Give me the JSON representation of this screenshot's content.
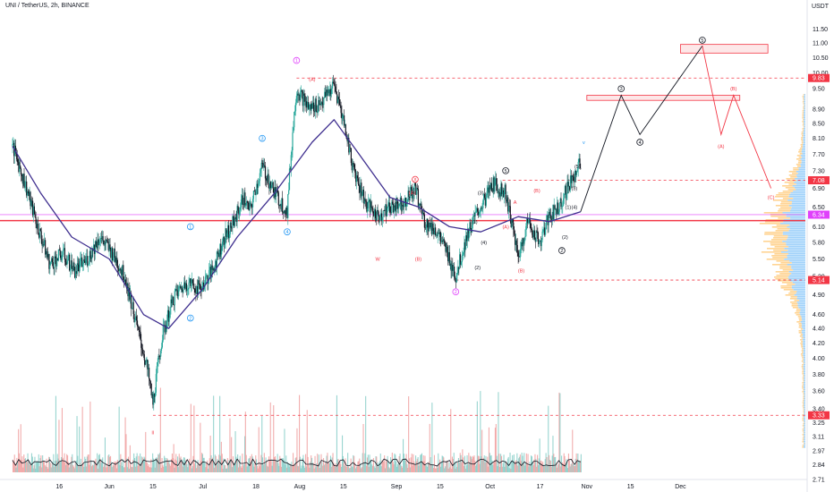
{
  "header": {
    "title": "UNI / TetherUS, 2h, BINANCE",
    "currency": "USDT"
  },
  "chart_data": {
    "type": "line",
    "subtype": "candlestick-elliott-wave",
    "title": "UNI / TetherUS, 2h, BINANCE",
    "ylim": [
      2.71,
      12.2
    ],
    "log_scale": true,
    "grid": false,
    "price_axis_ticks": [
      "11.50",
      "11.00",
      "10.50",
      "10.00",
      "9.50",
      "8.90",
      "8.50",
      "8.10",
      "7.70",
      "7.30",
      "6.90",
      "6.50",
      "6.10",
      "5.80",
      "5.50",
      "5.20",
      "4.90",
      "4.60",
      "4.40",
      "4.20",
      "4.00",
      "3.80",
      "3.60",
      "3.40",
      "3.25",
      "3.11",
      "2.97",
      "2.84",
      "2.71"
    ],
    "time_axis_ticks": [
      {
        "label": "16",
        "date": "2023-05-16"
      },
      {
        "label": "Jun",
        "date": "2023-06-01"
      },
      {
        "label": "15",
        "date": "2023-06-15"
      },
      {
        "label": "Jul",
        "date": "2023-07-01"
      },
      {
        "label": "18",
        "date": "2023-07-18"
      },
      {
        "label": "Aug",
        "date": "2023-08-01"
      },
      {
        "label": "15",
        "date": "2023-08-15"
      },
      {
        "label": "Sep",
        "date": "2023-09-01"
      },
      {
        "label": "15",
        "date": "2023-09-15"
      },
      {
        "label": "Oct",
        "date": "2023-10-01"
      },
      {
        "label": "17",
        "date": "2023-10-17"
      },
      {
        "label": "Nov",
        "date": "2023-11-01"
      },
      {
        "label": "15",
        "date": "2023-11-15"
      },
      {
        "label": "Dec",
        "date": "2023-12-01"
      }
    ],
    "price_labels": [
      {
        "text": "9.83",
        "color": "#f23645"
      },
      {
        "text": "7.08",
        "color": "#f23645"
      },
      {
        "text": "6.34",
        "color": "#e040fb"
      },
      {
        "text": "5.14",
        "color": "#f23645"
      },
      {
        "text": "3.33",
        "color": "#f23645"
      }
    ],
    "levels": [
      {
        "price": 9.83,
        "style": "dashed",
        "color": "#f23645"
      },
      {
        "price": 7.08,
        "style": "dashed",
        "color": "#f23645"
      },
      {
        "price": 6.34,
        "style": "solid",
        "color": "#e040fb"
      },
      {
        "price": 6.22,
        "style": "solid",
        "color": "#f23645"
      },
      {
        "price": 5.14,
        "style": "dashed",
        "color": "#f23645"
      },
      {
        "price": 3.33,
        "style": "dashed",
        "color": "#f23645"
      }
    ],
    "price_path": [
      {
        "date": "2023-05-01",
        "price": 7.9
      },
      {
        "date": "2023-05-05",
        "price": 7.0
      },
      {
        "date": "2023-05-09",
        "price": 6.1
      },
      {
        "date": "2023-05-13",
        "price": 5.4
      },
      {
        "date": "2023-05-17",
        "price": 5.6
      },
      {
        "date": "2023-05-21",
        "price": 5.3
      },
      {
        "date": "2023-05-25",
        "price": 5.5
      },
      {
        "date": "2023-05-29",
        "price": 5.9
      },
      {
        "date": "2023-06-02",
        "price": 5.6
      },
      {
        "date": "2023-06-06",
        "price": 5.2
      },
      {
        "date": "2023-06-10",
        "price": 4.4
      },
      {
        "date": "2023-06-13",
        "price": 3.9
      },
      {
        "date": "2023-06-15",
        "price": 3.45
      },
      {
        "date": "2023-06-18",
        "price": 4.3
      },
      {
        "date": "2023-06-22",
        "price": 4.9
      },
      {
        "date": "2023-06-26",
        "price": 5.1
      },
      {
        "date": "2023-06-30",
        "price": 5.0
      },
      {
        "date": "2023-07-04",
        "price": 5.3
      },
      {
        "date": "2023-07-08",
        "price": 5.9
      },
      {
        "date": "2023-07-11",
        "price": 6.2
      },
      {
        "date": "2023-07-14",
        "price": 6.7
      },
      {
        "date": "2023-07-16",
        "price": 6.4
      },
      {
        "date": "2023-07-20",
        "price": 7.4
      },
      {
        "date": "2023-07-24",
        "price": 6.8
      },
      {
        "date": "2023-07-28",
        "price": 6.4
      },
      {
        "date": "2023-07-31",
        "price": 9.5
      },
      {
        "date": "2023-08-04",
        "price": 8.9
      },
      {
        "date": "2023-08-08",
        "price": 9.1
      },
      {
        "date": "2023-08-12",
        "price": 9.6
      },
      {
        "date": "2023-08-15",
        "price": 8.6
      },
      {
        "date": "2023-08-18",
        "price": 7.4
      },
      {
        "date": "2023-08-22",
        "price": 6.6
      },
      {
        "date": "2023-08-26",
        "price": 6.3
      },
      {
        "date": "2023-08-30",
        "price": 6.5
      },
      {
        "date": "2023-09-03",
        "price": 6.6
      },
      {
        "date": "2023-09-07",
        "price": 6.9
      },
      {
        "date": "2023-09-10",
        "price": 6.2
      },
      {
        "date": "2023-09-14",
        "price": 6.0
      },
      {
        "date": "2023-09-18",
        "price": 5.5
      },
      {
        "date": "2023-09-20",
        "price": 5.2
      },
      {
        "date": "2023-09-24",
        "price": 6.0
      },
      {
        "date": "2023-09-28",
        "price": 6.5
      },
      {
        "date": "2023-10-02",
        "price": 7.0
      },
      {
        "date": "2023-10-06",
        "price": 6.8
      },
      {
        "date": "2023-10-10",
        "price": 5.5
      },
      {
        "date": "2023-10-13",
        "price": 6.2
      },
      {
        "date": "2023-10-17",
        "price": 5.8
      },
      {
        "date": "2023-10-20",
        "price": 6.3
      },
      {
        "date": "2023-10-23",
        "price": 6.5
      },
      {
        "date": "2023-10-27",
        "price": 7.1
      },
      {
        "date": "2023-10-30",
        "price": 7.5
      }
    ],
    "moving_average": [
      {
        "date": "2023-05-01",
        "price": 7.9
      },
      {
        "date": "2023-05-10",
        "price": 6.8
      },
      {
        "date": "2023-05-20",
        "price": 5.9
      },
      {
        "date": "2023-06-01",
        "price": 5.5
      },
      {
        "date": "2023-06-12",
        "price": 4.6
      },
      {
        "date": "2023-06-20",
        "price": 4.4
      },
      {
        "date": "2023-07-01",
        "price": 5.0
      },
      {
        "date": "2023-07-12",
        "price": 5.9
      },
      {
        "date": "2023-07-24",
        "price": 6.8
      },
      {
        "date": "2023-08-05",
        "price": 8.0
      },
      {
        "date": "2023-08-12",
        "price": 8.6
      },
      {
        "date": "2023-08-20",
        "price": 7.7
      },
      {
        "date": "2023-08-30",
        "price": 6.7
      },
      {
        "date": "2023-09-08",
        "price": 6.5
      },
      {
        "date": "2023-09-18",
        "price": 6.1
      },
      {
        "date": "2023-09-28",
        "price": 6.0
      },
      {
        "date": "2023-10-10",
        "price": 6.3
      },
      {
        "date": "2023-10-20",
        "price": 6.2
      },
      {
        "date": "2023-10-30",
        "price": 6.4
      }
    ],
    "projection_main": [
      {
        "date": "2023-10-30",
        "price": 6.4
      },
      {
        "date": "2023-11-12",
        "price": 9.3
      },
      {
        "date": "2023-11-18",
        "price": 8.2
      },
      {
        "date": "2023-12-08",
        "price": 10.9
      }
    ],
    "projection_correction": [
      {
        "date": "2023-12-08",
        "price": 10.9
      },
      {
        "date": "2023-12-14",
        "price": 8.2
      },
      {
        "date": "2023-12-18",
        "price": 9.3
      },
      {
        "date": "2023-12-30",
        "price": 6.9
      }
    ],
    "target_zones": [
      {
        "from": "2023-11-01",
        "to": "2023-12-20",
        "low": 9.15,
        "high": 9.3,
        "color": "#f23645"
      },
      {
        "from": "2023-12-01",
        "to": "2023-12-29",
        "low": 10.65,
        "high": 10.95,
        "color": "#f23645"
      }
    ],
    "wave_labels": [
      {
        "text": "1",
        "date": "2023-07-31",
        "price": 10.4,
        "color": "#e040fb",
        "circle": true
      },
      {
        "text": "2",
        "date": "2023-09-20",
        "price": 4.95,
        "color": "#e040fb",
        "circle": true
      },
      {
        "text": "3",
        "date": "2023-11-12",
        "price": 9.5,
        "color": "#131722",
        "circle": true
      },
      {
        "text": "4",
        "date": "2023-11-18",
        "price": 8.0,
        "color": "#131722",
        "circle": true
      },
      {
        "text": "5",
        "date": "2023-12-08",
        "price": 11.1,
        "color": "#131722",
        "circle": true
      },
      {
        "text": "(A)",
        "date": "2023-12-14",
        "price": 7.9,
        "color": "#f23645",
        "circle": false
      },
      {
        "text": "(B)",
        "date": "2023-12-18",
        "price": 9.5,
        "color": "#f23645",
        "circle": false
      },
      {
        "text": "(C)",
        "date": "2023-12-30",
        "price": 6.7,
        "color": "#f23645",
        "circle": false
      },
      {
        "text": "1",
        "date": "2023-06-27",
        "price": 6.1,
        "color": "#2196f3",
        "circle": true
      },
      {
        "text": "2",
        "date": "2023-06-27",
        "price": 4.55,
        "color": "#2196f3",
        "circle": true
      },
      {
        "text": "3",
        "date": "2023-07-20",
        "price": 8.1,
        "color": "#2196f3",
        "circle": true
      },
      {
        "text": "4",
        "date": "2023-07-28",
        "price": 6.0,
        "color": "#2196f3",
        "circle": true
      },
      {
        "text": "v",
        "date": "2023-10-31",
        "price": 8.0,
        "color": "#2196f3",
        "circle": false
      },
      {
        "text": "(1)",
        "date": "2023-09-26",
        "price": 6.2,
        "color": "#131722",
        "circle": false
      },
      {
        "text": "(2)",
        "date": "2023-09-27",
        "price": 5.35,
        "color": "#131722",
        "circle": false
      },
      {
        "text": "(3)",
        "date": "2023-09-28",
        "price": 6.8,
        "color": "#131722",
        "circle": false
      },
      {
        "text": "(4)",
        "date": "2023-09-29",
        "price": 5.8,
        "color": "#131722",
        "circle": false
      },
      {
        "text": "5",
        "date": "2023-10-06",
        "price": 7.3,
        "color": "#131722",
        "circle": true
      },
      {
        "text": "(1)",
        "date": "2023-10-26",
        "price": 6.5,
        "color": "#131722",
        "circle": false
      },
      {
        "text": "(2)",
        "date": "2023-10-25",
        "price": 5.9,
        "color": "#131722",
        "circle": false
      },
      {
        "text": "(3)",
        "date": "2023-10-28",
        "price": 6.9,
        "color": "#131722",
        "circle": false
      },
      {
        "text": "(4)",
        "date": "2023-10-28",
        "price": 6.5,
        "color": "#131722",
        "circle": false
      },
      {
        "text": "(5)",
        "date": "2023-10-29",
        "price": 7.4,
        "color": "#131722",
        "circle": false
      },
      {
        "text": "2",
        "date": "2023-10-24",
        "price": 5.65,
        "color": "#131722",
        "circle": true
      },
      {
        "text": "X",
        "date": "2023-09-07",
        "price": 7.1,
        "color": "#f23645",
        "circle": true
      },
      {
        "text": "W",
        "date": "2023-08-26",
        "price": 5.5,
        "color": "#f23645",
        "circle": false
      },
      {
        "text": "(A)",
        "date": "2023-09-06",
        "price": 6.8,
        "color": "#f23645",
        "circle": false
      },
      {
        "text": "(B)",
        "date": "2023-09-08",
        "price": 5.5,
        "color": "#f23645",
        "circle": false
      },
      {
        "text": "(B)",
        "date": "2023-10-16",
        "price": 6.85,
        "color": "#f23645",
        "circle": false
      },
      {
        "text": "(B)",
        "date": "2023-10-11",
        "price": 5.3,
        "color": "#f23645",
        "circle": false
      },
      {
        "text": "(A)",
        "date": "2023-10-06",
        "price": 6.1,
        "color": "#f23645",
        "circle": false
      },
      {
        "text": "A",
        "date": "2023-10-09",
        "price": 6.6,
        "color": "#f23645",
        "circle": false
      },
      {
        "text": "(A)",
        "date": "2023-08-05",
        "price": 9.8,
        "color": "#f23645",
        "circle": false
      },
      {
        "text": "II",
        "date": "2023-06-15",
        "price": 3.15,
        "color": "#f23645",
        "circle": false
      }
    ],
    "volume_profile_note": "",
    "colors": {
      "up": "#26a69a",
      "down": "#131722",
      "ma": "#3f2f8f",
      "level": "#f23645",
      "projection": "#131722",
      "correction": "#f23645",
      "volume_up": "#80cbc4",
      "volume_down": "#ef9a9a",
      "profile_up": "#90caf9",
      "profile_down": "#ffcc80"
    }
  }
}
